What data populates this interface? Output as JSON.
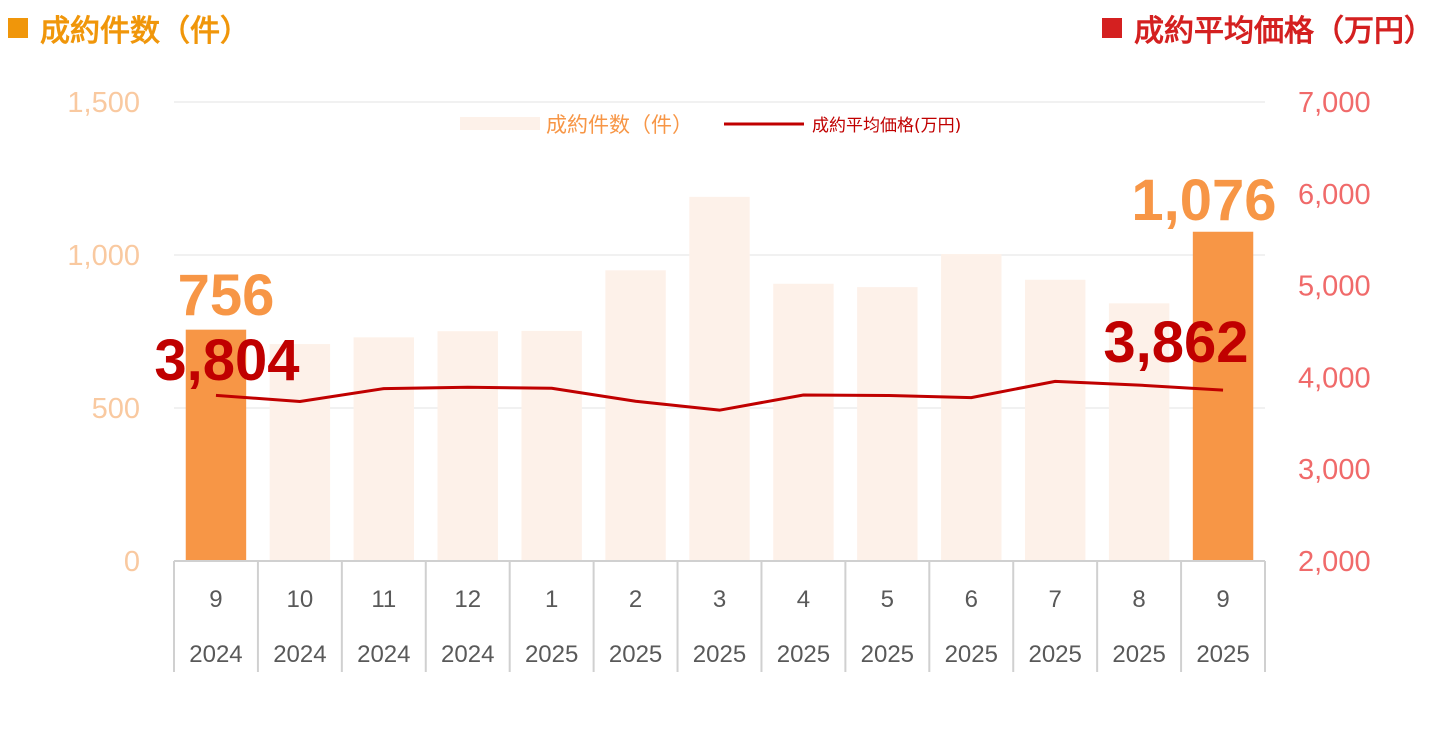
{
  "titles": {
    "left": "成約件数（件）",
    "right": "成約平均価格（万円）"
  },
  "colors": {
    "left_title": "#F0960A",
    "right_title": "#D42020",
    "bar_highlight": "#F79646",
    "bar_faded": "#FDF1E9",
    "line": "#C00000",
    "left_axis_ticks": "#F9C9A0",
    "right_axis_ticks": "#F06A6A",
    "legend_bar_text": "#F79646",
    "legend_line_text": "#C00000",
    "grid": "#E3E3E3",
    "cat_axis": "#D0D0D0"
  },
  "chart_data": {
    "type": "bar",
    "categories": [
      "9",
      "10",
      "11",
      "12",
      "1",
      "2",
      "3",
      "4",
      "5",
      "6",
      "7",
      "8",
      "9"
    ],
    "years": [
      "2024",
      "2024",
      "2024",
      "2024",
      "2025",
      "2025",
      "2025",
      "2025",
      "2025",
      "2025",
      "2025",
      "2025",
      "2025"
    ],
    "series": [
      {
        "name": "成約件数（件）",
        "type": "bar",
        "axis": "left",
        "values": [
          756,
          709,
          731,
          751,
          752,
          950,
          1190,
          906,
          895,
          1003,
          919,
          842,
          1076
        ],
        "highlight": [
          true,
          false,
          false,
          false,
          false,
          false,
          false,
          false,
          false,
          false,
          false,
          false,
          true
        ]
      },
      {
        "name": "成約平均価格(万円)",
        "type": "line",
        "axis": "right",
        "values": [
          3804,
          3737,
          3878,
          3893,
          3882,
          3740,
          3643,
          3808,
          3803,
          3780,
          3957,
          3916,
          3862
        ]
      }
    ],
    "y_left": {
      "lim": [
        0,
        1500
      ],
      "ticks": [
        "0",
        "500",
        "1,000",
        "1,500"
      ]
    },
    "y_right": {
      "lim": [
        2000,
        7000
      ],
      "ticks": [
        "2,000",
        "3,000",
        "4,000",
        "5,000",
        "6,000",
        "7,000"
      ]
    },
    "annotations": {
      "first_bar": "756",
      "last_bar": "1,076",
      "first_line": "3,804",
      "last_line": "3,862"
    },
    "grid": true,
    "legend_position": "top-center"
  }
}
